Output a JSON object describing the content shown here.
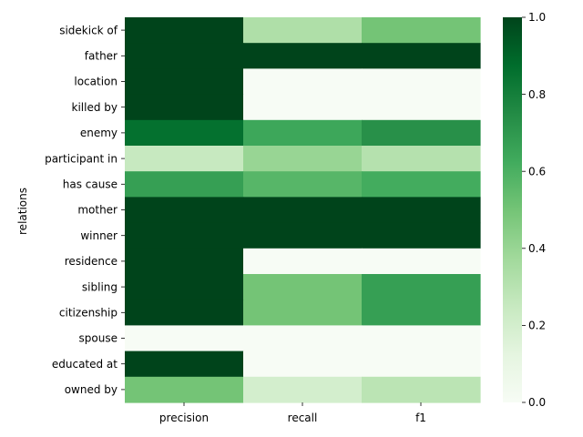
{
  "chart_data": {
    "type": "heatmap",
    "title": "",
    "xlabel": "",
    "ylabel": "relations",
    "x_categories": [
      "precision",
      "recall",
      "f1"
    ],
    "y_categories": [
      "sidekick of",
      "father",
      "location",
      "killed by",
      "enemy",
      "participant in",
      "has cause",
      "mother",
      "winner",
      "residence",
      "sibling",
      "citizenship",
      "spouse",
      "educated at",
      "owned by"
    ],
    "values": [
      [
        1.0,
        0.33,
        0.5
      ],
      [
        1.0,
        1.0,
        1.0
      ],
      [
        1.0,
        0.0,
        0.0
      ],
      [
        1.0,
        0.0,
        0.0
      ],
      [
        0.86,
        0.64,
        0.73
      ],
      [
        0.25,
        0.4,
        0.31
      ],
      [
        0.67,
        0.57,
        0.62
      ],
      [
        1.0,
        1.0,
        1.0
      ],
      [
        1.0,
        1.0,
        1.0
      ],
      [
        1.0,
        0.0,
        0.0
      ],
      [
        1.0,
        0.5,
        0.67
      ],
      [
        1.0,
        0.5,
        0.67
      ],
      [
        0.0,
        0.0,
        0.0
      ],
      [
        1.0,
        0.0,
        0.0
      ],
      [
        0.5,
        0.2,
        0.29
      ]
    ],
    "colormap": "Greens",
    "vmin": 0.0,
    "vmax": 1.0,
    "colorbar_ticks": [
      "0.0",
      "0.2",
      "0.4",
      "0.6",
      "0.8",
      "1.0"
    ],
    "colorbar_tick_values": [
      0.0,
      0.2,
      0.4,
      0.6,
      0.8,
      1.0
    ],
    "grid": false
  }
}
